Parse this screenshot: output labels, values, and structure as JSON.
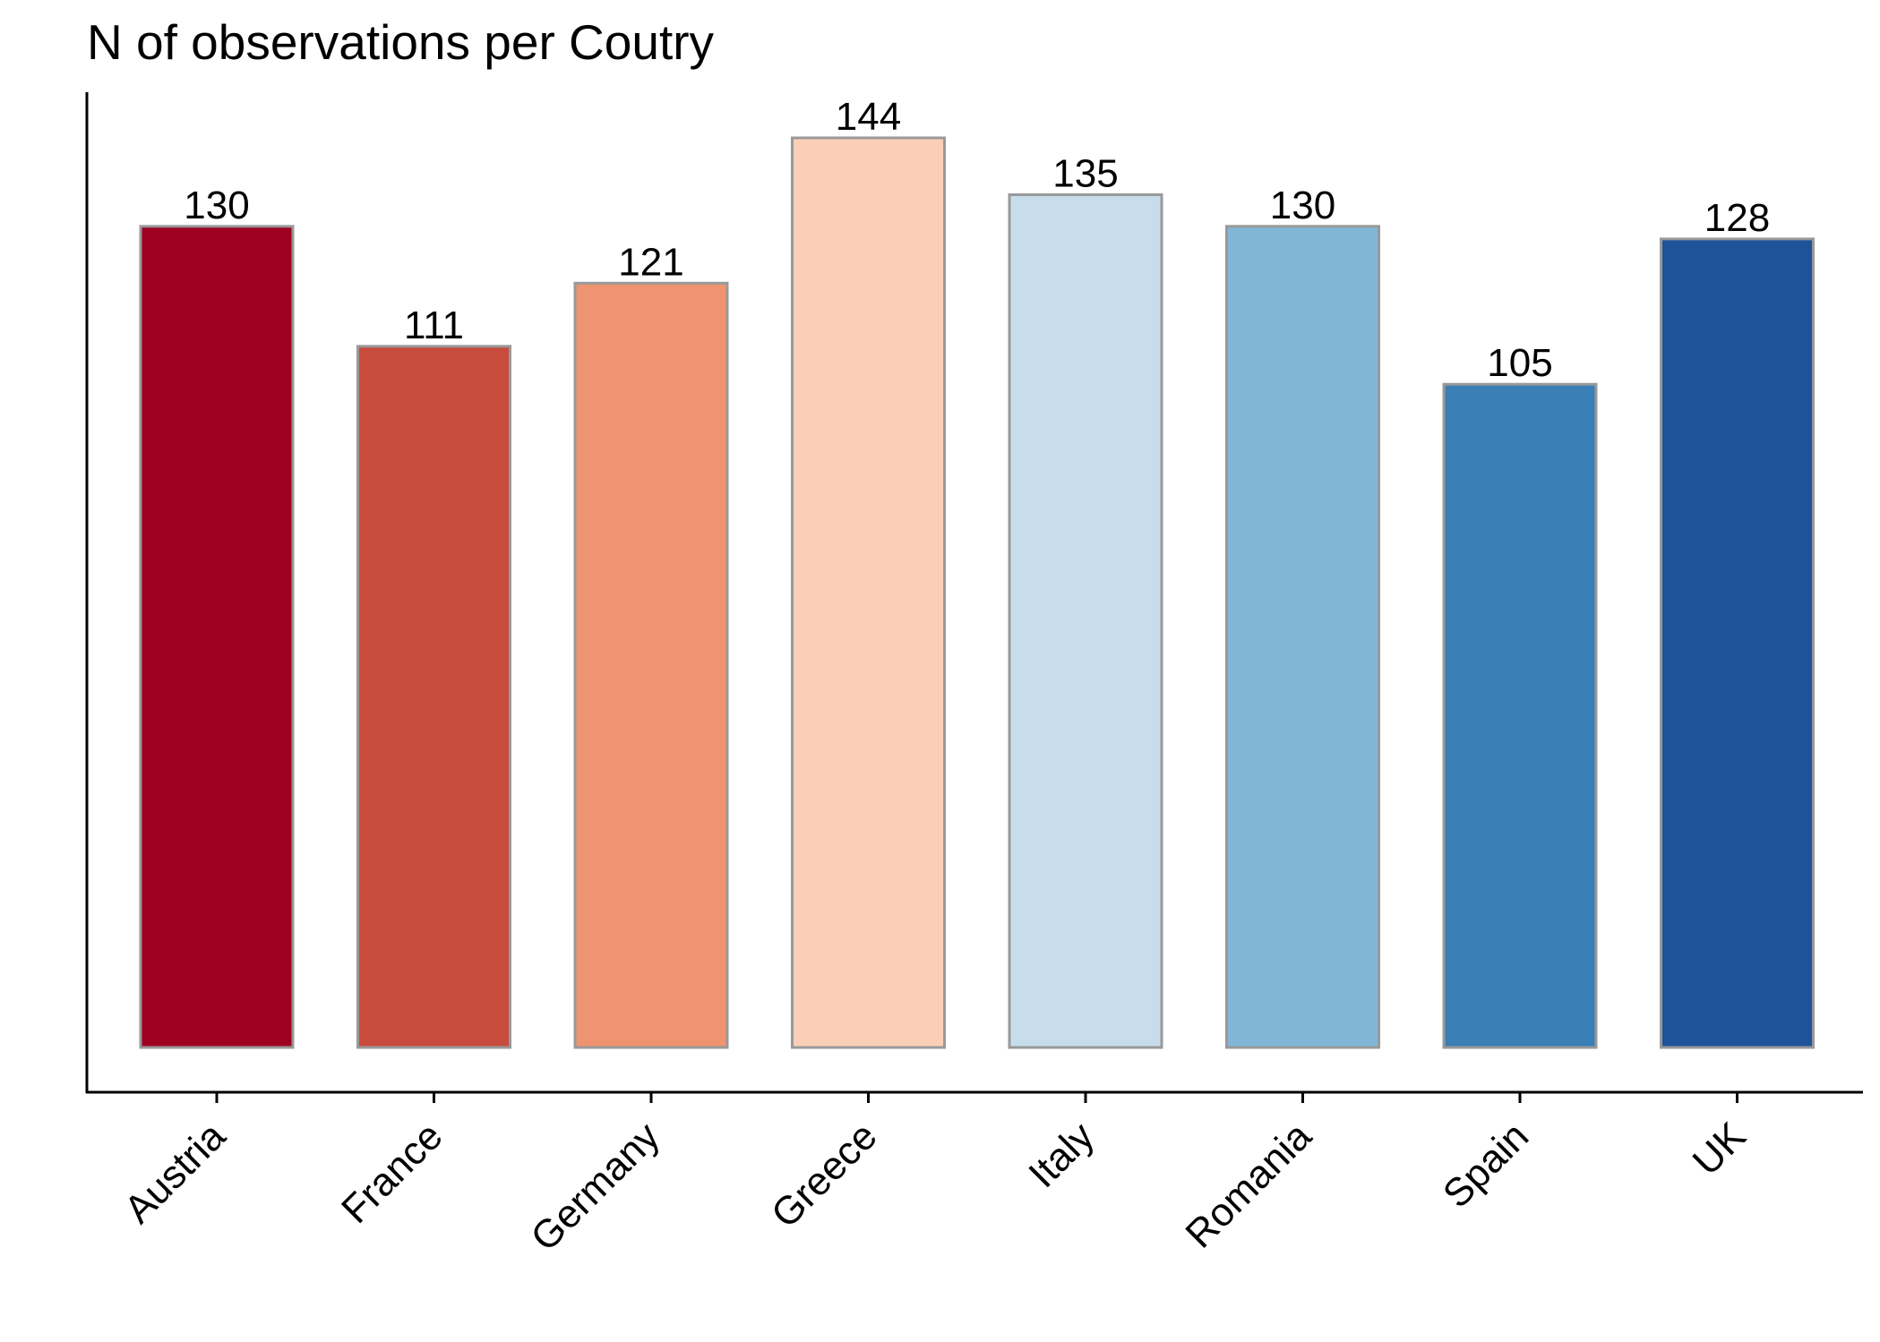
{
  "chart_data": {
    "type": "bar",
    "title": "N of observations per Coutry",
    "xlabel": "",
    "ylabel": "",
    "categories": [
      "Austria",
      "France",
      "Germany",
      "Greece",
      "Italy",
      "Romania",
      "Spain",
      "UK"
    ],
    "values": [
      130,
      111,
      121,
      144,
      135,
      130,
      105,
      128
    ],
    "data_labels": [
      "130",
      "111",
      "121",
      "144",
      "135",
      "130",
      "105",
      "128"
    ],
    "colors": [
      "#9E0022",
      "#C84B3D",
      "#EE9470",
      "#FBCFB7",
      "#C7DDEB",
      "#82B6D6",
      "#3A7FB5",
      "#1E5299"
    ],
    "bar_edge_color": "#999999",
    "ylim": [
      0,
      144
    ],
    "y_axis_ticks_shown": false,
    "grid": false,
    "legend": "none"
  }
}
